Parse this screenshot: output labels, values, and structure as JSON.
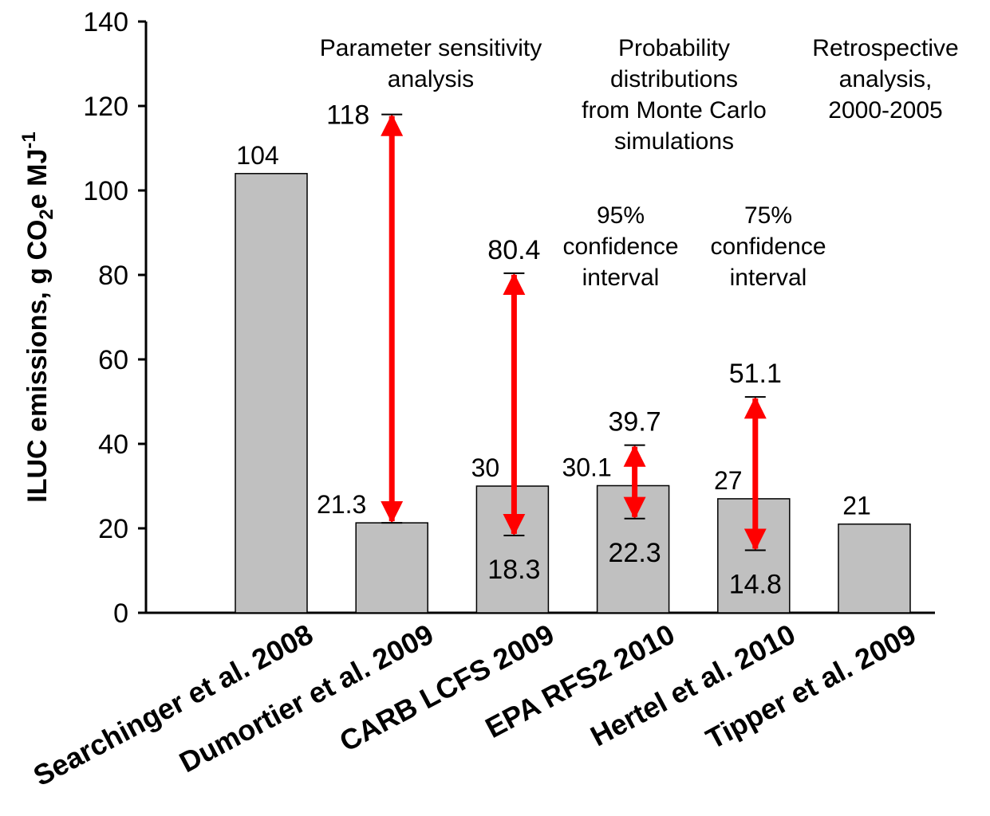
{
  "chart_data": {
    "type": "bar",
    "ylabel": [
      "ILUC emissions, g CO",
      "2",
      "e MJ",
      "-1"
    ],
    "categories": [
      "Searchinger et al. 2008",
      "Dumortier et al. 2009",
      "CARB LCFS 2009",
      "EPA RFS2 2010",
      "Hertel et al. 2010",
      "Tipper et al. 2009"
    ],
    "values": [
      104,
      21.3,
      30,
      30.1,
      27,
      21
    ],
    "color": "#c0c0c0",
    "range_low": [
      null,
      21.3,
      18.3,
      22.3,
      14.8,
      null
    ],
    "range_high": [
      null,
      118,
      80.4,
      39.7,
      51.1,
      null
    ],
    "range_color": "#ff0000",
    "ylim": [
      0,
      140
    ],
    "yticks": [
      0,
      20,
      40,
      60,
      80,
      100,
      120,
      140
    ],
    "annotations": [
      {
        "lines": [
          "Parameter sensitivity",
          "analysis"
        ]
      },
      {
        "lines": [
          "Probability",
          "distributions",
          "from Monte Carlo",
          "simulations"
        ]
      },
      {
        "lines": [
          "Retrospective",
          "analysis,",
          "2000-2005"
        ]
      },
      {
        "lines": [
          "95%",
          "confidence",
          "interval"
        ]
      },
      {
        "lines": [
          "75%",
          "confidence",
          "interval"
        ]
      }
    ]
  }
}
